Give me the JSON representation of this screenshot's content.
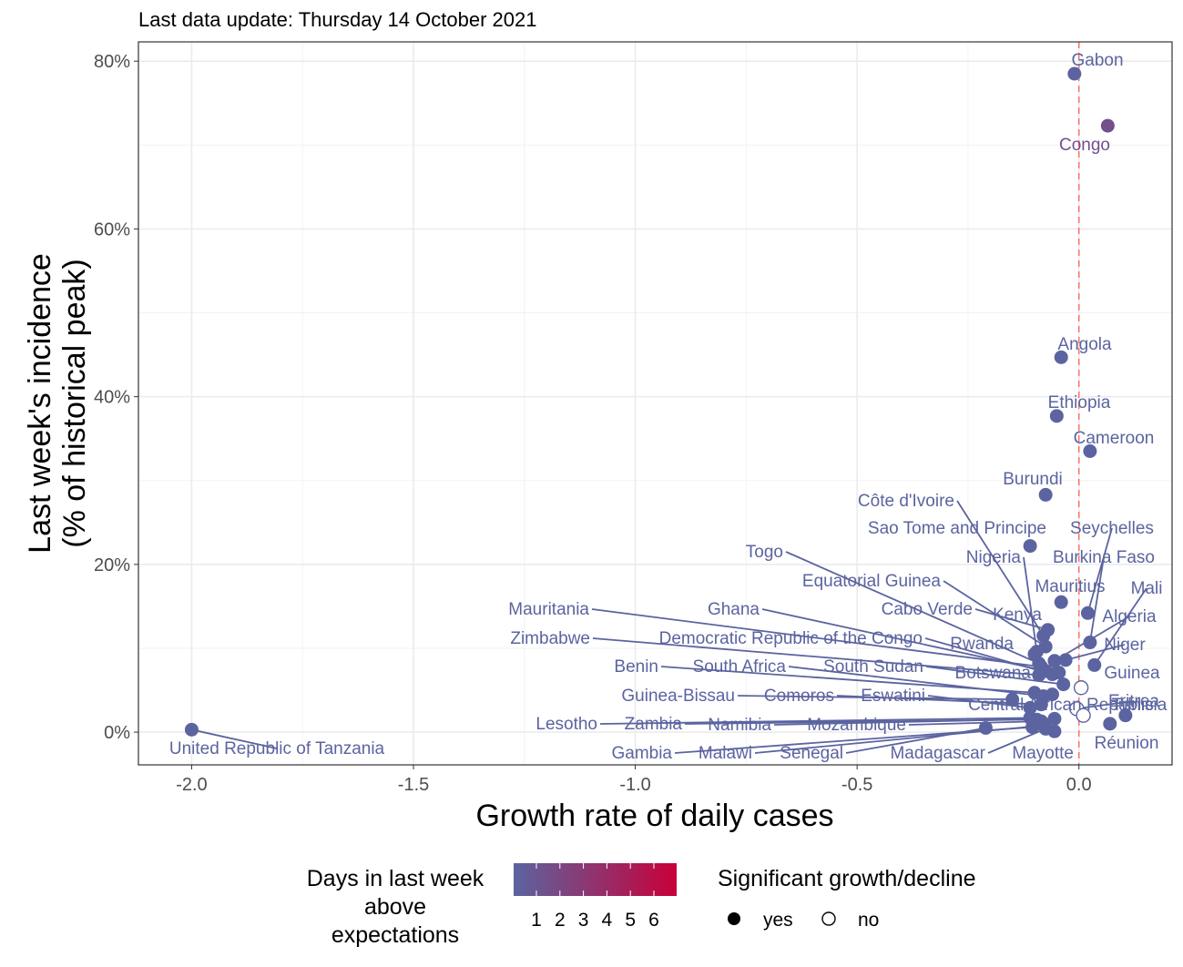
{
  "chart_data": {
    "type": "scatter",
    "subtitle": "Last data update: Thursday 14 October 2021",
    "xlabel": "Growth rate of daily cases",
    "ylabel": [
      "Last week's incidence",
      "(% of historical peak)"
    ],
    "xlim": [
      -2.12,
      0.21
    ],
    "ylim": [
      -3.9,
      82.3
    ],
    "x_ticks": [
      {
        "value": -2.0,
        "label": "-2.0"
      },
      {
        "value": -1.5,
        "label": "-1.5"
      },
      {
        "value": -1.0,
        "label": "-1.0"
      },
      {
        "value": -0.5,
        "label": "-0.5"
      },
      {
        "value": 0.0,
        "label": "0.0"
      }
    ],
    "y_ticks": [
      {
        "value": 0,
        "label": "0%"
      },
      {
        "value": 20,
        "label": "20%"
      },
      {
        "value": 40,
        "label": "40%"
      },
      {
        "value": 60,
        "label": "60%"
      },
      {
        "value": 80,
        "label": "80%"
      }
    ],
    "reference_line": {
      "x": 0,
      "color": "#f8766d",
      "style": "dashed"
    },
    "color_scale": {
      "title": [
        "Days in last week",
        "above",
        "expectations"
      ],
      "low_color": "#5b64a0",
      "high_color": "#c8003a",
      "breaks": [
        "1",
        "2",
        "3",
        "4",
        "5",
        "6"
      ]
    },
    "shape_legend": {
      "title": "Significant growth/decline",
      "items": [
        {
          "label": "yes",
          "filled": true
        },
        {
          "label": "no",
          "filled": false
        }
      ]
    },
    "label_color": "#5b64a0",
    "points": [
      {
        "country": "Gabon",
        "x": -0.01,
        "y": 78.5,
        "days": 1,
        "sig": true
      },
      {
        "country": "Congo",
        "x": 0.065,
        "y": 72.3,
        "days": 2,
        "sig": true
      },
      {
        "country": "Angola",
        "x": -0.04,
        "y": 44.7,
        "days": 1,
        "sig": true
      },
      {
        "country": "Ethiopia",
        "x": -0.05,
        "y": 37.7,
        "days": 1,
        "sig": true
      },
      {
        "country": "Cameroon",
        "x": 0.025,
        "y": 33.5,
        "days": 1,
        "sig": true
      },
      {
        "country": "Burundi",
        "x": -0.075,
        "y": 28.3,
        "days": 1,
        "sig": true
      },
      {
        "country": "Côte d'Ivoire",
        "x": -0.08,
        "y": 11.5,
        "days": 1,
        "sig": true
      },
      {
        "country": "Sao Tome and Principe",
        "x": -0.11,
        "y": 22.2,
        "days": 1,
        "sig": true
      },
      {
        "country": "Seychelles",
        "x": 0.02,
        "y": 14.2,
        "days": 1,
        "sig": true
      },
      {
        "country": "Nigeria",
        "x": -0.095,
        "y": 9.6,
        "days": 1,
        "sig": true
      },
      {
        "country": "Burkina Faso",
        "x": 0.025,
        "y": 10.7,
        "days": 1,
        "sig": true
      },
      {
        "country": "Togo",
        "x": -0.09,
        "y": 8.2,
        "days": 1,
        "sig": true
      },
      {
        "country": "Mauritius",
        "x": -0.04,
        "y": 15.5,
        "days": 1,
        "sig": true
      },
      {
        "country": "Mali",
        "x": 0.035,
        "y": 8.0,
        "days": 1,
        "sig": true
      },
      {
        "country": "Equatorial Guinea",
        "x": -0.075,
        "y": 10.2,
        "days": 1,
        "sig": true
      },
      {
        "country": "Cabo Verde",
        "x": -0.07,
        "y": 12.2,
        "days": 1,
        "sig": true
      },
      {
        "country": "Kenya",
        "x": -0.1,
        "y": 9.3,
        "days": 1,
        "sig": true
      },
      {
        "country": "Algeria",
        "x": -0.055,
        "y": 8.5,
        "days": 1,
        "sig": true
      },
      {
        "country": "Mauritania",
        "x": -0.085,
        "y": 7.8,
        "days": 1,
        "sig": true
      },
      {
        "country": "Ghana",
        "x": -0.075,
        "y": 7.3,
        "days": 1,
        "sig": true
      },
      {
        "country": "Niger",
        "x": -0.03,
        "y": 8.6,
        "days": 1,
        "sig": true
      },
      {
        "country": "Zimbabwe",
        "x": -0.09,
        "y": 6.8,
        "days": 1,
        "sig": true
      },
      {
        "country": "Democratic Republic of the Congo",
        "x": -0.06,
        "y": 6.9,
        "days": 1,
        "sig": true
      },
      {
        "country": "Rwanda",
        "x": -0.045,
        "y": 7.1,
        "days": 1,
        "sig": true
      },
      {
        "country": "Guinea",
        "x": 0.005,
        "y": 5.3,
        "days": 1,
        "sig": false
      },
      {
        "country": "Benin",
        "x": -0.1,
        "y": 4.7,
        "days": 1,
        "sig": true
      },
      {
        "country": "South Africa",
        "x": -0.08,
        "y": 4.3,
        "days": 1,
        "sig": true
      },
      {
        "country": "South Sudan",
        "x": -0.035,
        "y": 5.7,
        "days": 1,
        "sig": true
      },
      {
        "country": "Botswana",
        "x": -0.06,
        "y": 4.5,
        "days": 1,
        "sig": true
      },
      {
        "country": "Eritrea",
        "x": -0.005,
        "y": 2.8,
        "days": 1,
        "sig": false
      },
      {
        "country": "Guinea-Bissau",
        "x": -0.15,
        "y": 3.9,
        "days": 1,
        "sig": true
      },
      {
        "country": "Comoros",
        "x": -0.085,
        "y": 3.3,
        "days": 1,
        "sig": true
      },
      {
        "country": "Eswatini",
        "x": -0.11,
        "y": 2.9,
        "days": 1,
        "sig": true
      },
      {
        "country": "Central African Republic",
        "x": 0.01,
        "y": 2.0,
        "days": 1,
        "sig": false
      },
      {
        "country": "Tunisia",
        "x": 0.105,
        "y": 2.0,
        "days": 1,
        "sig": true
      },
      {
        "country": "Lesotho",
        "x": -0.11,
        "y": 1.7,
        "days": 1,
        "sig": true
      },
      {
        "country": "Zambia",
        "x": -0.095,
        "y": 1.5,
        "days": 1,
        "sig": true
      },
      {
        "country": "Namibia",
        "x": -0.055,
        "y": 1.6,
        "days": 1,
        "sig": true
      },
      {
        "country": "Mozambique",
        "x": -0.085,
        "y": 1.3,
        "days": 1,
        "sig": true
      },
      {
        "country": "Réunion",
        "x": 0.07,
        "y": 1.0,
        "days": 1,
        "sig": true
      },
      {
        "country": "Gambia",
        "x": -0.105,
        "y": 0.6,
        "days": 1,
        "sig": true
      },
      {
        "country": "Malawi",
        "x": -0.08,
        "y": 0.8,
        "days": 1,
        "sig": true
      },
      {
        "country": "Senegal",
        "x": -0.21,
        "y": 0.5,
        "days": 1,
        "sig": true
      },
      {
        "country": "Madagascar",
        "x": -0.075,
        "y": 0.4,
        "days": 1,
        "sig": true
      },
      {
        "country": "Mayotte",
        "x": -0.055,
        "y": 0.1,
        "days": 1,
        "sig": true
      },
      {
        "country": "United Republic of Tanzania",
        "x": -2.0,
        "y": 0.3,
        "days": 1,
        "sig": true
      }
    ]
  }
}
